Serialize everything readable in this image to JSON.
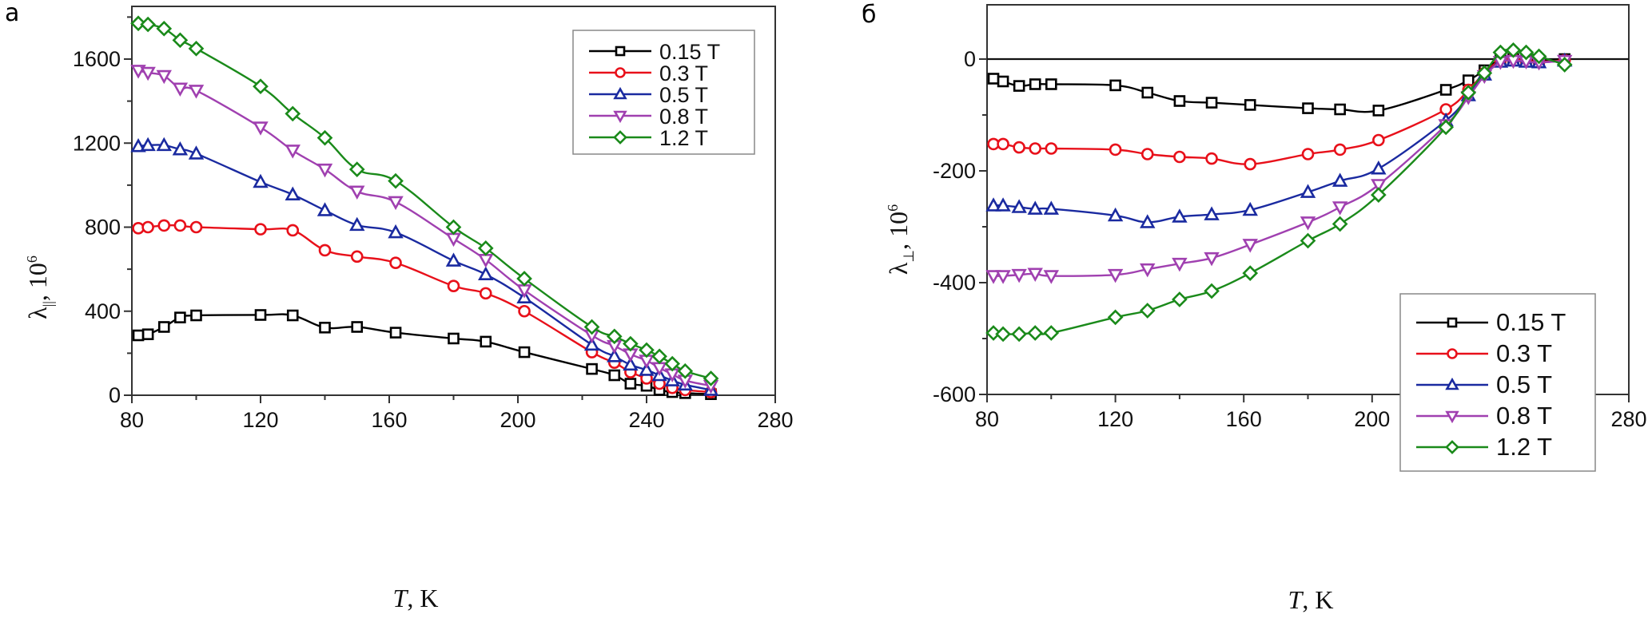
{
  "chart_data": [
    {
      "type": "line",
      "panel_label": "а",
      "title": "",
      "xlabel_italic": "T",
      "xlabel_unit": ", K",
      "ylabel_symbol": "λ",
      "ylabel_subscript": "||",
      "ylabel_unit": ", 10",
      "ylabel_exp": "6",
      "xlim": [
        80,
        280
      ],
      "ylim": [
        0,
        1800
      ],
      "xticks": [
        80,
        120,
        160,
        200,
        240,
        280
      ],
      "xticks_minor": [
        100,
        140,
        180,
        220,
        260
      ],
      "yticks": [
        0,
        400,
        800,
        1200,
        1600
      ],
      "yticks_minor": [
        200,
        600,
        1000,
        1400,
        1800
      ],
      "grid": false,
      "legend_position": "top-right",
      "x": [
        82,
        85,
        90,
        95,
        100,
        120,
        130,
        140,
        150,
        162,
        180,
        190,
        202,
        223,
        230,
        235,
        240,
        244,
        248,
        252,
        260
      ],
      "series": [
        {
          "name": "0.15 T",
          "color": "#000000",
          "marker": "square",
          "values": [
            285,
            290,
            325,
            370,
            380,
            382,
            380,
            322,
            325,
            298,
            270,
            255,
            205,
            125,
            95,
            55,
            45,
            25,
            15,
            10,
            5
          ]
        },
        {
          "name": "0.3 T",
          "color": "#e8101a",
          "marker": "circle",
          "values": [
            795,
            800,
            808,
            808,
            800,
            790,
            785,
            690,
            660,
            630,
            520,
            485,
            400,
            205,
            155,
            110,
            80,
            55,
            35,
            25,
            15
          ]
        },
        {
          "name": "0.5 T",
          "color": "#1a2aa0",
          "marker": "triangle-up",
          "values": [
            1185,
            1190,
            1190,
            1170,
            1150,
            1015,
            955,
            880,
            810,
            775,
            640,
            575,
            465,
            240,
            185,
            145,
            120,
            95,
            70,
            50,
            25
          ]
        },
        {
          "name": "0.8 T",
          "color": "#a040b0",
          "marker": "triangle-down",
          "values": [
            1545,
            1535,
            1520,
            1460,
            1450,
            1275,
            1165,
            1075,
            970,
            920,
            745,
            645,
            500,
            285,
            235,
            195,
            165,
            130,
            100,
            70,
            45
          ]
        },
        {
          "name": "1.2 T",
          "color": "#1a8a1a",
          "marker": "diamond",
          "values": [
            1770,
            1765,
            1745,
            1690,
            1650,
            1470,
            1340,
            1225,
            1075,
            1020,
            800,
            700,
            555,
            325,
            280,
            245,
            215,
            185,
            150,
            115,
            80
          ]
        }
      ]
    },
    {
      "type": "line",
      "panel_label": "б",
      "title": "",
      "xlabel_italic": "T",
      "xlabel_unit": ", K",
      "ylabel_symbol": "λ",
      "ylabel_subscript": "⊥",
      "ylabel_unit": ", 10",
      "ylabel_exp": "6",
      "xlim": [
        80,
        280
      ],
      "ylim": [
        -600,
        100
      ],
      "xticks": [
        80,
        120,
        160,
        200,
        240,
        280
      ],
      "xticks_minor": [
        100,
        140,
        180,
        220,
        260
      ],
      "yticks": [
        -600,
        -400,
        -200,
        0
      ],
      "yticks_minor": [
        -500,
        -300,
        -100
      ],
      "zero_line": true,
      "grid": false,
      "legend_position": "bottom-right",
      "x": [
        82,
        85,
        90,
        95,
        100,
        120,
        130,
        140,
        150,
        162,
        180,
        190,
        202,
        223,
        230,
        235,
        240,
        244,
        248,
        252,
        260
      ],
      "series": [
        {
          "name": "0.15 T",
          "color": "#000000",
          "marker": "square",
          "values": [
            -35,
            -40,
            -48,
            -45,
            -45,
            -47,
            -60,
            -75,
            -78,
            -82,
            -88,
            -90,
            -92,
            -55,
            -38,
            -20,
            0,
            0,
            -2,
            -3,
            0
          ]
        },
        {
          "name": "0.3 T",
          "color": "#e8101a",
          "marker": "circle",
          "values": [
            -152,
            -152,
            -158,
            -160,
            -160,
            -162,
            -170,
            -175,
            -178,
            -188,
            -170,
            -162,
            -145,
            -90,
            -55,
            -25,
            -2,
            0,
            -3,
            -5,
            -2
          ]
        },
        {
          "name": "0.5 T",
          "color": "#1a2aa0",
          "marker": "triangle-up",
          "values": [
            -262,
            -262,
            -265,
            -268,
            -268,
            -280,
            -292,
            -282,
            -278,
            -270,
            -238,
            -218,
            -196,
            -110,
            -65,
            -28,
            -5,
            -3,
            -5,
            -6,
            -3
          ]
        },
        {
          "name": "0.8 T",
          "color": "#a040b0",
          "marker": "triangle-down",
          "values": [
            -388,
            -388,
            -386,
            -384,
            -388,
            -386,
            -376,
            -366,
            -356,
            -332,
            -292,
            -265,
            -225,
            -118,
            -68,
            -30,
            -5,
            -3,
            -4,
            -6,
            -3
          ]
        },
        {
          "name": "1.2 T",
          "color": "#1a8a1a",
          "marker": "diamond",
          "values": [
            -490,
            -492,
            -492,
            -490,
            -490,
            -462,
            -450,
            -430,
            -415,
            -383,
            -325,
            -295,
            -243,
            -122,
            -60,
            -25,
            12,
            16,
            12,
            5,
            -10
          ]
        }
      ]
    }
  ]
}
